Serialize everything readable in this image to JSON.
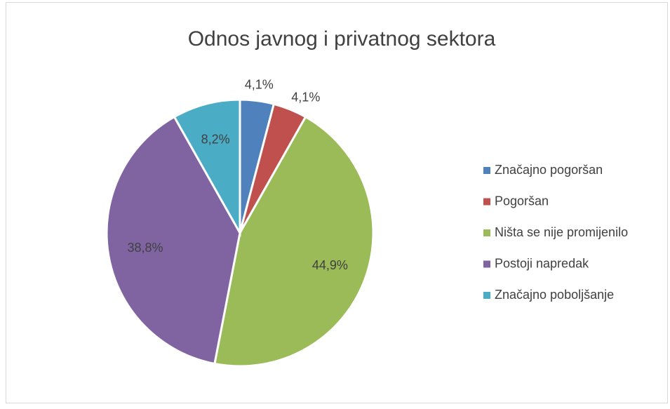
{
  "chart_data": {
    "type": "pie",
    "title": "Odnos javnog i privatnog sektora",
    "categories": [
      "Značajno pogoršan",
      "Pogoršan",
      "Ništa se nije promijenilo",
      "Postoji napredak",
      "Značajno poboljšanje"
    ],
    "values": [
      4.1,
      4.1,
      44.9,
      38.8,
      8.2
    ],
    "value_labels": [
      "4,1%",
      "4,1%",
      "44,9%",
      "38,8%",
      "8,2%"
    ],
    "colors": [
      "#4f81bd",
      "#c0504d",
      "#9bbb59",
      "#8064a2",
      "#4bacc6"
    ],
    "legend": "right"
  }
}
